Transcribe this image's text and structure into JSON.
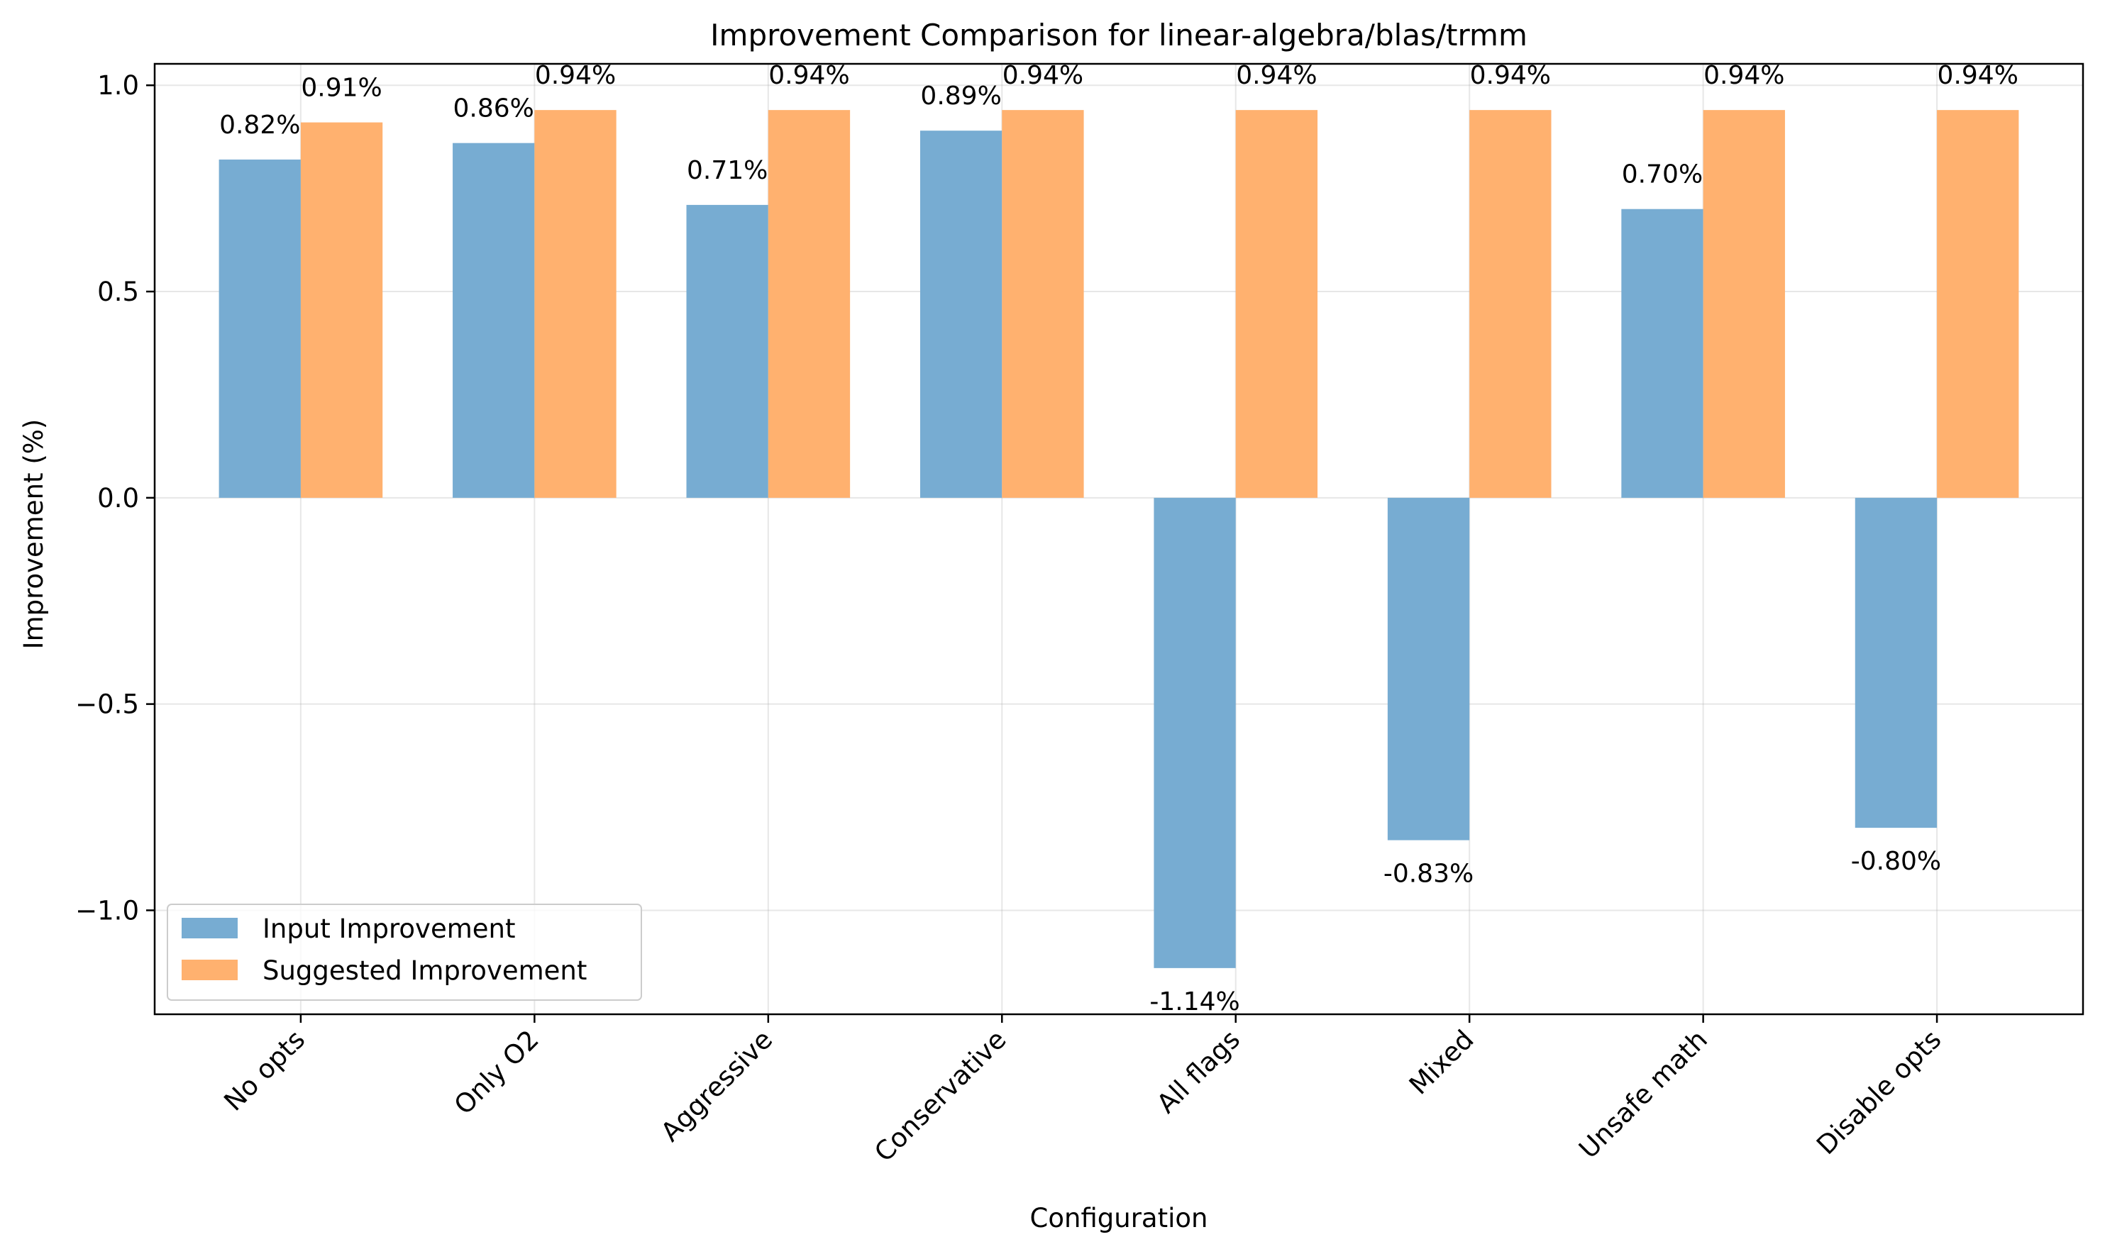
{
  "chart_data": {
    "type": "bar",
    "title": "Improvement Comparison for linear-algebra/blas/trmm",
    "xlabel": "Configuration",
    "ylabel": "Improvement (%)",
    "categories": [
      "No opts",
      "Only O2",
      "Aggressive",
      "Conservative",
      "All flags",
      "Mixed",
      "Unsafe math",
      "Disable opts"
    ],
    "series": [
      {
        "name": "Input Improvement",
        "color": "#77acd2",
        "values": [
          0.82,
          0.86,
          0.71,
          0.89,
          -1.14,
          -0.83,
          0.7,
          -0.8
        ],
        "labels": [
          "0.82%",
          "0.86%",
          "0.71%",
          "0.89%",
          "-1.14%",
          "-0.83%",
          "0.70%",
          "-0.80%"
        ]
      },
      {
        "name": "Suggested Improvement",
        "color": "#ffb16f",
        "values": [
          0.91,
          0.94,
          0.94,
          0.94,
          0.94,
          0.94,
          0.94,
          0.94
        ],
        "labels": [
          "0.91%",
          "0.94%",
          "0.94%",
          "0.94%",
          "0.94%",
          "0.94%",
          "0.94%",
          "0.94%"
        ]
      }
    ],
    "ylim": [
      -1.252,
      1.052
    ],
    "yticks": [
      1.0,
      0.5,
      0.0,
      -0.5,
      -1.0
    ],
    "ytick_labels": [
      "1.0",
      "0.5",
      "0.0",
      "−0.5",
      "−1.0"
    ],
    "grid": true,
    "legend_position": "lower-left"
  }
}
